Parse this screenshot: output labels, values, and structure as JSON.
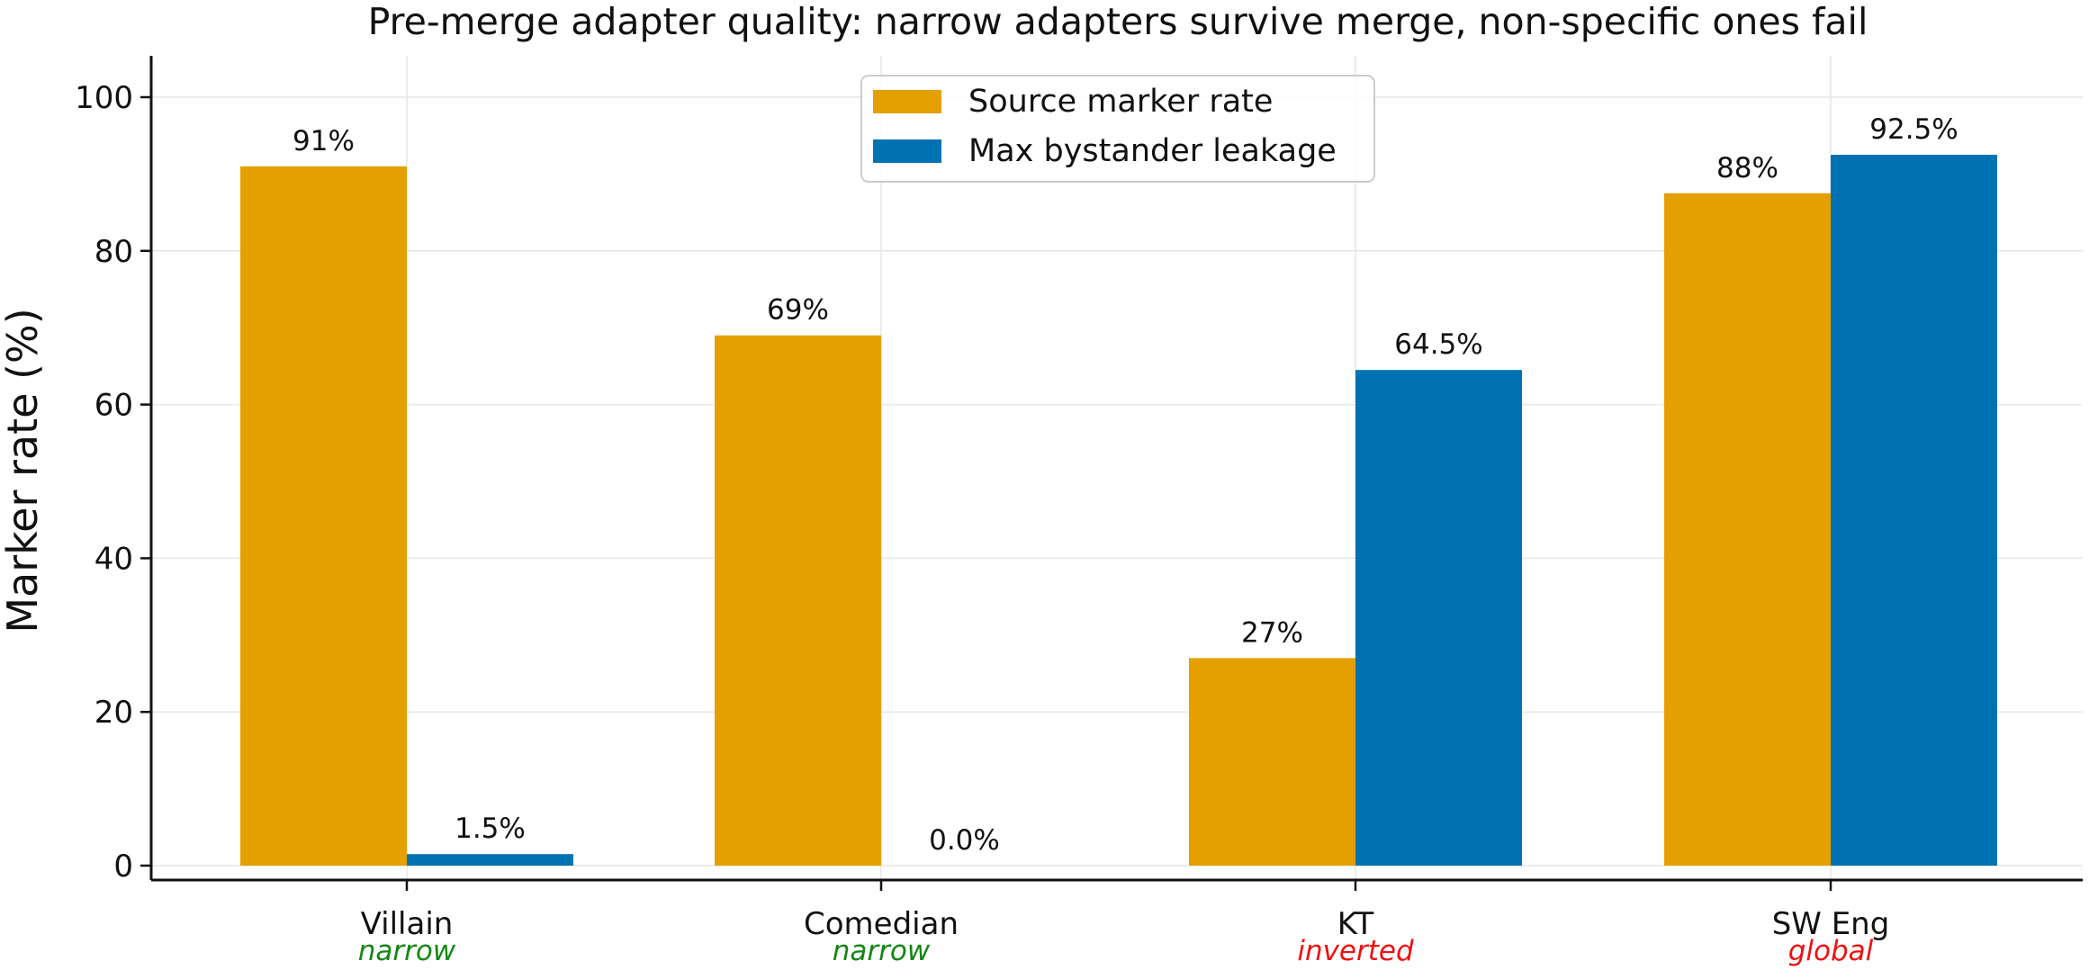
{
  "chart_data": {
    "type": "bar",
    "title": "Pre-merge adapter quality: narrow adapters survive merge, non-specific ones fail",
    "xlabel": "",
    "ylabel": "Marker rate (%)",
    "ylim": [
      0,
      105
    ],
    "yticks": [
      0,
      20,
      40,
      60,
      80,
      100
    ],
    "grid": true,
    "legend_position": "top-center",
    "categories": [
      "Villain",
      "Comedian",
      "KT",
      "SW Eng"
    ],
    "category_tags": [
      {
        "text": "narrow",
        "color": "#138613"
      },
      {
        "text": "narrow",
        "color": "#138613"
      },
      {
        "text": "inverted",
        "color": "#ee1111"
      },
      {
        "text": "global",
        "color": "#ee1111"
      }
    ],
    "series": [
      {
        "name": "Source marker rate",
        "color": "#E4A000",
        "values": [
          91,
          69,
          27,
          87.5
        ],
        "labels": [
          "91%",
          "69%",
          "27%",
          "88%"
        ]
      },
      {
        "name": "Max bystander leakage",
        "color": "#0072B2",
        "values": [
          1.5,
          0.0,
          64.5,
          92.5
        ],
        "labels": [
          "1.5%",
          "0.0%",
          "64.5%",
          "92.5%"
        ]
      }
    ]
  }
}
